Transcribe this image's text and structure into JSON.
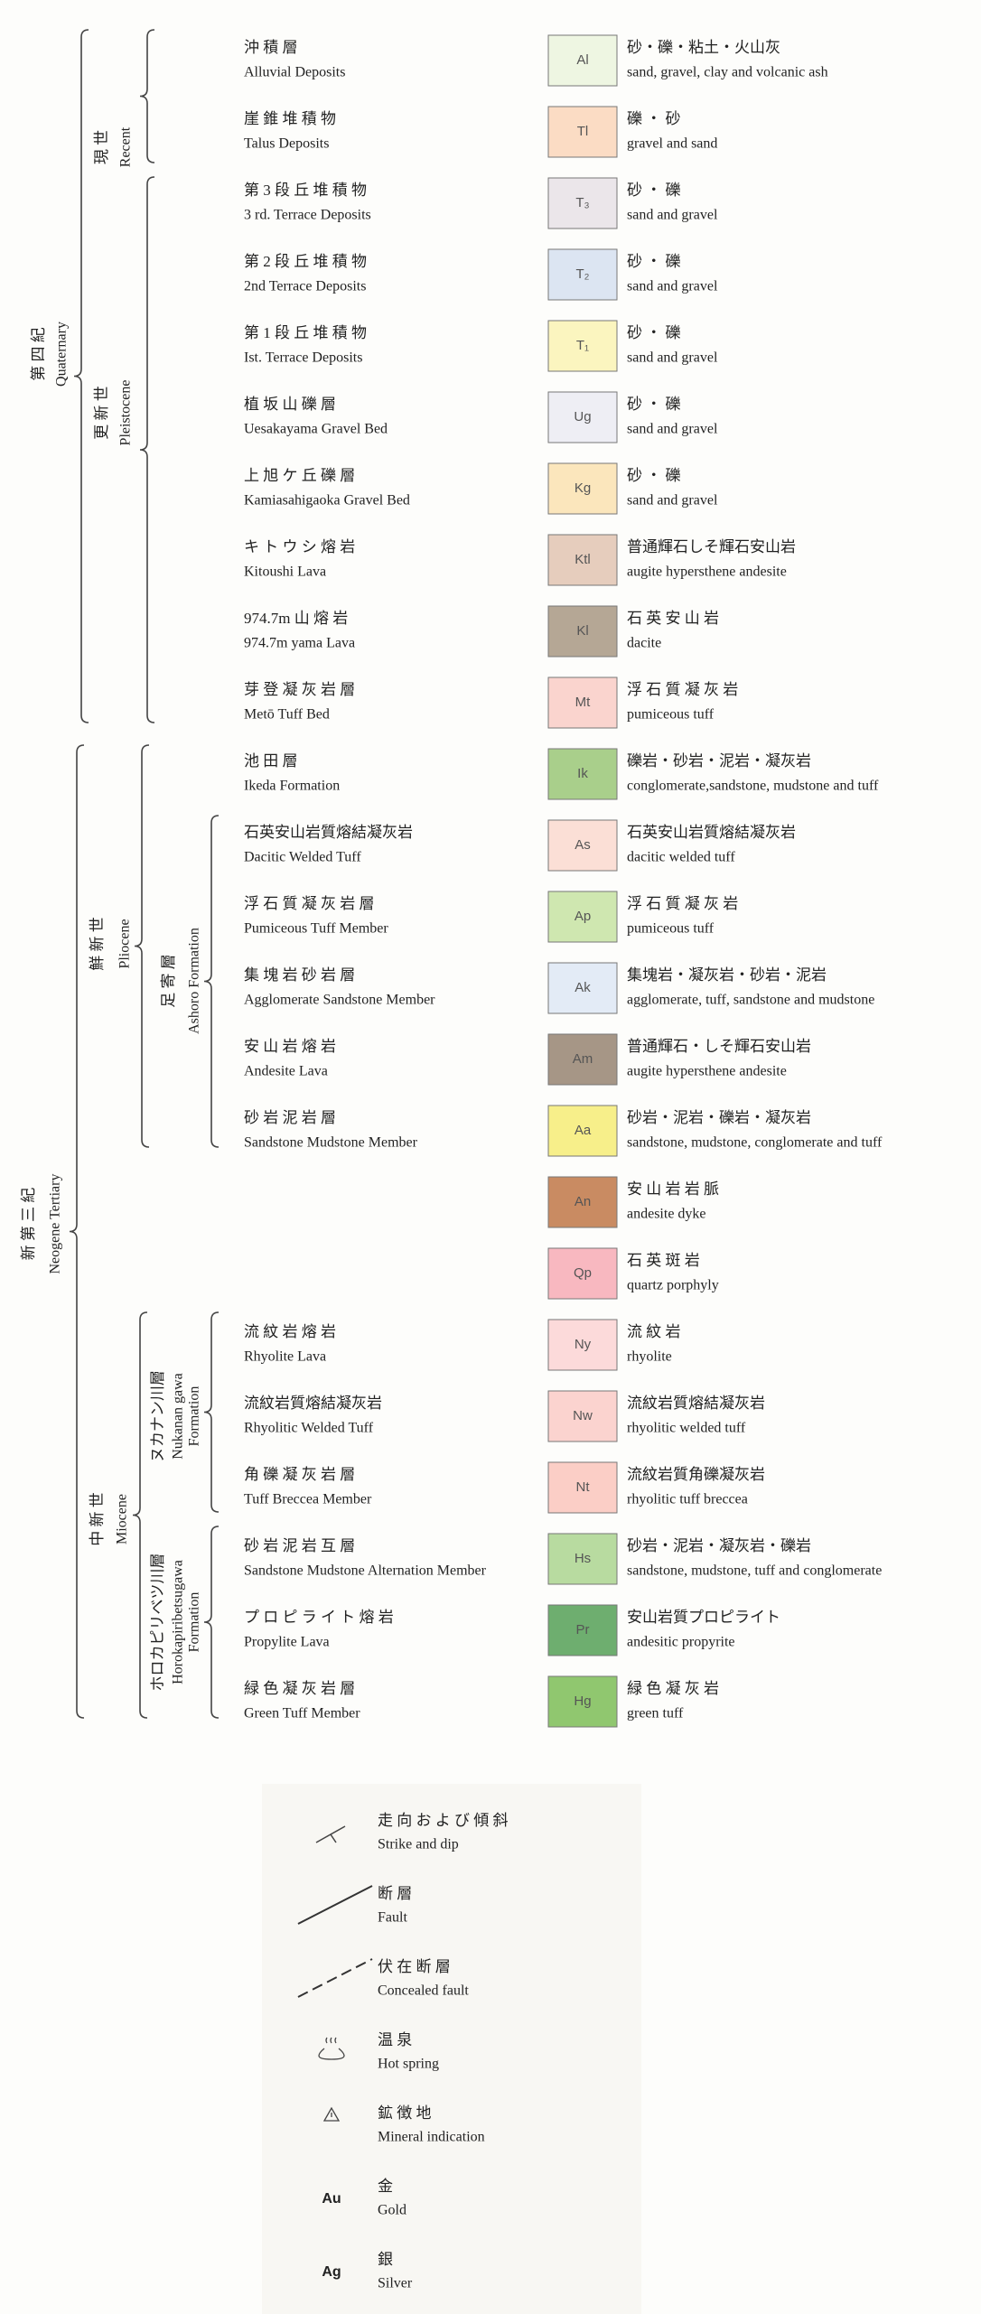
{
  "periods": [
    {
      "ja": "第 四 紀",
      "en": [
        "Quaternary"
      ]
    },
    {
      "ja": "現 世",
      "en": [
        "Recent"
      ]
    },
    {
      "ja": "更 新 世",
      "en": [
        "Pleistocene"
      ]
    },
    {
      "ja": "新 第 三 紀",
      "en": [
        "Neogene Tertiary"
      ]
    },
    {
      "ja": "鮮 新 世",
      "en": [
        "Pliocene"
      ]
    },
    {
      "ja": "足 寄 層",
      "en": [
        "Ashoro Formation"
      ]
    },
    {
      "ja": "中 新 世",
      "en": [
        "Miocene"
      ]
    },
    {
      "ja": "ヌカナン川層",
      "en": [
        "Nukanan gawa",
        "Formation"
      ]
    },
    {
      "ja": "ホロカピリベツ川層",
      "en": [
        "Horokapiribetsugawa",
        "Formation"
      ]
    }
  ],
  "units": [
    {
      "name_ja": "沖 積 層",
      "name_en": "Alluvial Deposits",
      "code": "Al",
      "color": "#eef6e2",
      "desc_ja": "砂・礫・粘土・火山灰",
      "desc_en": "sand, gravel, clay and volcanic ash"
    },
    {
      "name_ja": "崖 錐 堆 積 物",
      "name_en": "Talus Deposits",
      "code": "Tl",
      "color": "#fbdcc4",
      "desc_ja": "礫 ・ 砂",
      "desc_en": "gravel and sand"
    },
    {
      "name_ja": "第 3 段 丘 堆 積 物",
      "name_en": "3 rd. Terrace Deposits",
      "code": "T₃",
      "color": "#ebe6ea",
      "desc_ja": "砂 ・ 礫",
      "desc_en": "sand and gravel"
    },
    {
      "name_ja": "第 2 段 丘 堆 積 物",
      "name_en": "2nd Terrace Deposits",
      "code": "T₂",
      "color": "#dce5f2",
      "desc_ja": "砂 ・ 礫",
      "desc_en": "sand and gravel"
    },
    {
      "name_ja": "第 1 段 丘 堆 積 物",
      "name_en": "Ist. Terrace Deposits",
      "code": "T₁",
      "color": "#fbf5bf",
      "desc_ja": "砂 ・ 礫",
      "desc_en": "sand and gravel"
    },
    {
      "name_ja": "植 坂 山 礫 層",
      "name_en": "Uesakayama Gravel Bed",
      "code": "Ug",
      "color": "#eeeef4",
      "desc_ja": "砂 ・ 礫",
      "desc_en": "sand and gravel"
    },
    {
      "name_ja": "上 旭 ケ 丘 礫 層",
      "name_en": "Kamiasahigaoka Gravel Bed",
      "code": "Kg",
      "color": "#fbe6bc",
      "desc_ja": "砂 ・ 礫",
      "desc_en": "sand and gravel"
    },
    {
      "name_ja": "キ ト ウ シ 熔 岩",
      "name_en": "Kitoushi Lava",
      "code": "Ktl",
      "color": "#e6cdbd",
      "desc_ja": "普通輝石しそ輝石安山岩",
      "desc_en": "augite hypersthene andesite"
    },
    {
      "name_ja": "974.7m 山 熔 岩",
      "name_en": "974.7m yama Lava",
      "code": "Kl",
      "color": "#b5a795",
      "desc_ja": "石 英 安 山 岩",
      "desc_en": "dacite"
    },
    {
      "name_ja": "芽 登 凝 灰 岩 層",
      "name_en": "Metō Tuff Bed",
      "code": "Mt",
      "color": "#fad4ce",
      "desc_ja": "浮 石 質 凝 灰 岩",
      "desc_en": "pumiceous tuff"
    },
    {
      "name_ja": "池 田 層",
      "name_en": "Ikeda Formation",
      "code": "Ik",
      "color": "#a9cf8b",
      "desc_ja": "礫岩・砂岩・泥岩・凝灰岩",
      "desc_en": "conglomerate,sandstone, mudstone and tuff"
    },
    {
      "name_ja": "石英安山岩質熔結凝灰岩",
      "name_en": "Dacitic Welded Tuff",
      "code": "As",
      "color": "#fbdfd6",
      "desc_ja": "石英安山岩質熔結凝灰岩",
      "desc_en": "dacitic welded tuff"
    },
    {
      "name_ja": "浮 石 質 凝 灰 岩 層",
      "name_en": "Pumiceous Tuff Member",
      "code": "Ap",
      "color": "#cfe7b0",
      "desc_ja": "浮 石 質 凝 灰 岩",
      "desc_en": "pumiceous tuff"
    },
    {
      "name_ja": "集 塊 岩 砂 岩 層",
      "name_en": "Agglomerate Sandstone Member",
      "code": "Ak",
      "color": "#e3ebf6",
      "desc_ja": "集塊岩・凝灰岩・砂岩・泥岩",
      "desc_en": "agglomerate, tuff, sandstone and mudstone"
    },
    {
      "name_ja": "安 山 岩 熔 岩",
      "name_en": "Andesite Lava",
      "code": "Am",
      "color": "#a69686",
      "desc_ja": "普通輝石・しそ輝石安山岩",
      "desc_en": "augite hypersthene andesite"
    },
    {
      "name_ja": "砂 岩 泥 岩 層",
      "name_en": "Sandstone Mudstone Member",
      "code": "Aa",
      "color": "#f7ef8a",
      "desc_ja": "砂岩・泥岩・礫岩・凝灰岩",
      "desc_en": "sandstone, mudstone, conglomerate and tuff"
    },
    {
      "code": "An",
      "color": "#c98b62",
      "desc_ja": "安 山 岩 岩 脈",
      "desc_en": "andesite dyke"
    },
    {
      "code": "Qp",
      "color": "#f8b8c0",
      "desc_ja": "石 英 斑 岩",
      "desc_en": "quartz porphyly"
    },
    {
      "name_ja": "流 紋 岩 熔 岩",
      "name_en": "Rhyolite Lava",
      "code": "Ny",
      "color": "#fcdada",
      "desc_ja": "流 紋 岩",
      "desc_en": "rhyolite"
    },
    {
      "name_ja": "流紋岩質熔結凝灰岩",
      "name_en": "Rhyolitic Welded Tuff",
      "code": "Nw",
      "color": "#fbd3cf",
      "desc_ja": "流紋岩質熔結凝灰岩",
      "desc_en": "rhyolitic welded tuff"
    },
    {
      "name_ja": "角 礫 凝 灰 岩 層",
      "name_en": "Tuff Breccea Member",
      "code": "Nt",
      "color": "#fbcec6",
      "desc_ja": "流紋岩質角礫凝灰岩",
      "desc_en": "rhyolitic tuff breccea"
    },
    {
      "name_ja": "砂 岩 泥 岩 互 層",
      "name_en": "Sandstone Mudstone Alternation Member",
      "code": "Hs",
      "color": "#b8dba0",
      "desc_ja": "砂岩・泥岩・凝灰岩・礫岩",
      "desc_en": "sandstone, mudstone, tuff and conglomerate"
    },
    {
      "name_ja": "プ ロ ピ ラ イ ト 熔 岩",
      "name_en": "Propylite Lava",
      "code": "Pr",
      "color": "#6eae6f",
      "desc_ja": "安山岩質プロピライト",
      "desc_en": "andesitic propyrite"
    },
    {
      "name_ja": "緑 色 凝 灰 岩 層",
      "name_en": "Green Tuff Member",
      "code": "Hg",
      "color": "#90c76f",
      "desc_ja": "緑 色 凝 灰 岩",
      "desc_en": "green tuff"
    }
  ],
  "symbols": [
    {
      "ja": "走 向 お よ び 傾 斜",
      "en": "Strike and dip"
    },
    {
      "ja": "断 層",
      "en": "Fault"
    },
    {
      "ja": "伏 在 断 層",
      "en": "Concealed fault"
    },
    {
      "ja": "温 泉",
      "en": "Hot spring"
    },
    {
      "ja": "鉱 徴 地",
      "en": "Mineral indication"
    },
    {
      "mark": "Au",
      "ja": "金",
      "en": "Gold"
    },
    {
      "mark": "Ag",
      "ja": "銀",
      "en": "Silver"
    }
  ]
}
